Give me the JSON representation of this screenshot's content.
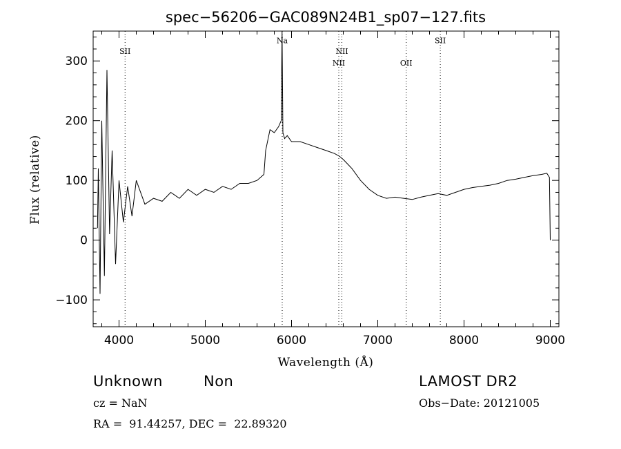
{
  "chart_data": {
    "type": "line",
    "title": "spec−56206−GAC089N24B1_sp07−127.fits",
    "xlabel": "Wavelength (Å)",
    "ylabel": "Flux (relative)",
    "xlim": [
      3700,
      9100
    ],
    "ylim": [
      -145,
      350
    ],
    "x_ticks": [
      4000,
      5000,
      6000,
      7000,
      8000,
      9000
    ],
    "y_ticks": [
      -100,
      0,
      100,
      200,
      300
    ],
    "x_tick_labels": [
      "4000",
      "5000",
      "6000",
      "7000",
      "8000",
      "9000"
    ],
    "y_tick_labels": [
      "−100",
      "0",
      "100",
      "200",
      "300"
    ],
    "grid": false,
    "series": [
      {
        "x": [
          3750,
          3760,
          3780,
          3800,
          3830,
          3860,
          3890,
          3920,
          3960,
          4000,
          4050,
          4100,
          4150,
          4200,
          4300,
          4400,
          4500,
          4600,
          4700,
          4800,
          4900,
          5000,
          5100,
          5200,
          5300,
          5400,
          5500,
          5600,
          5680,
          5700,
          5750,
          5800,
          5850,
          5880,
          5890,
          5900,
          5920,
          5950,
          6000,
          6100,
          6200,
          6300,
          6400,
          6500,
          6560,
          6600,
          6700,
          6800,
          6900,
          7000,
          7100,
          7200,
          7300,
          7400,
          7500,
          7600,
          7700,
          7800,
          7900,
          8000,
          8100,
          8200,
          8300,
          8400,
          8500,
          8600,
          8700,
          8800,
          8900,
          8960,
          8990,
          9000
        ],
        "y": [
          20,
          120,
          -90,
          200,
          -60,
          285,
          10,
          150,
          -40,
          100,
          30,
          90,
          40,
          100,
          60,
          70,
          65,
          80,
          70,
          85,
          75,
          85,
          80,
          90,
          85,
          95,
          95,
          100,
          110,
          150,
          185,
          180,
          190,
          200,
          350,
          180,
          170,
          175,
          165,
          165,
          160,
          155,
          150,
          145,
          140,
          135,
          120,
          100,
          85,
          75,
          70,
          72,
          70,
          68,
          72,
          75,
          78,
          75,
          80,
          85,
          88,
          90,
          92,
          95,
          100,
          102,
          105,
          108,
          110,
          112,
          105,
          0
        ],
        "color": "#000000"
      }
    ],
    "line_markers": [
      {
        "label": "SII",
        "x": 4070,
        "label_y": 312
      },
      {
        "label": "Na",
        "x": 5892,
        "label_y": 330
      },
      {
        "label": "NII",
        "x": 6548,
        "label_y": 292
      },
      {
        "label": "NII",
        "x": 6584,
        "label_y": 312
      },
      {
        "label": "OII",
        "x": 7330,
        "label_y": 292
      },
      {
        "label": "SII",
        "x": 7725,
        "label_y": 330
      }
    ]
  },
  "info": {
    "class": "Unknown",
    "subclass": "Non",
    "survey": "LAMOST DR2",
    "cz": "cz = NaN",
    "obs_date": "Obs−Date: 20121005",
    "coords": "RA =  91.44257, DEC =  22.89320"
  }
}
